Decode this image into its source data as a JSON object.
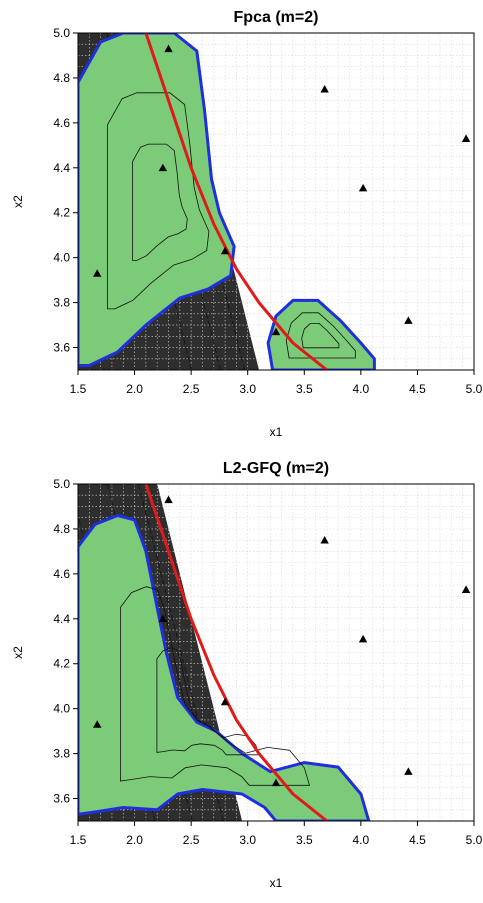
{
  "colors": {
    "background": "#ffffff",
    "gradient_dark": "#2e2e2e",
    "region_fill": "#7ccb78",
    "region_border": "#1f2fe0",
    "boundary_line": "#e01a1a",
    "contour_line": "#111111",
    "grid": "#d8d8d8",
    "point_marker": "#000000"
  },
  "chart_data": [
    {
      "type": "scatter",
      "title": "Fpca (m=2)",
      "xlabel": "x1",
      "ylabel": "x2",
      "xlim": [
        1.5,
        5.0
      ],
      "ylim": [
        3.5,
        5.0
      ],
      "xticks": [
        "1.5",
        "2.0",
        "2.5",
        "3.0",
        "3.5",
        "4.0",
        "4.5",
        "5.0"
      ],
      "yticks": [
        "3.6",
        "3.8",
        "4.0",
        "4.2",
        "4.4",
        "4.6",
        "4.8",
        "5.0"
      ],
      "grid": true,
      "points": [
        {
          "x": 1.67,
          "y": 3.93
        },
        {
          "x": 2.25,
          "y": 4.4
        },
        {
          "x": 2.3,
          "y": 4.93
        },
        {
          "x": 2.8,
          "y": 4.03
        },
        {
          "x": 3.25,
          "y": 3.67
        },
        {
          "x": 3.68,
          "y": 4.75
        },
        {
          "x": 4.02,
          "y": 4.31
        },
        {
          "x": 4.42,
          "y": 3.72
        },
        {
          "x": 4.93,
          "y": 4.53
        }
      ],
      "boundary_line": [
        [
          2.1,
          5.0
        ],
        [
          2.3,
          4.7
        ],
        [
          2.5,
          4.4
        ],
        [
          2.7,
          4.15
        ],
        [
          2.9,
          3.95
        ],
        [
          3.1,
          3.8
        ],
        [
          3.4,
          3.62
        ],
        [
          3.7,
          3.5
        ]
      ],
      "regions": [
        [
          [
            1.5,
            4.78
          ],
          [
            1.7,
            4.96
          ],
          [
            1.9,
            5.0
          ],
          [
            2.35,
            5.0
          ],
          [
            2.55,
            4.92
          ],
          [
            2.62,
            4.65
          ],
          [
            2.68,
            4.35
          ],
          [
            2.75,
            4.2
          ],
          [
            2.88,
            4.05
          ],
          [
            2.85,
            3.92
          ],
          [
            2.65,
            3.86
          ],
          [
            2.4,
            3.82
          ],
          [
            2.1,
            3.7
          ],
          [
            1.85,
            3.58
          ],
          [
            1.6,
            3.52
          ],
          [
            1.5,
            3.52
          ]
        ],
        [
          [
            3.22,
            3.5
          ],
          [
            3.18,
            3.62
          ],
          [
            3.25,
            3.74
          ],
          [
            3.4,
            3.81
          ],
          [
            3.62,
            3.81
          ],
          [
            3.82,
            3.72
          ],
          [
            4.0,
            3.62
          ],
          [
            4.12,
            3.55
          ],
          [
            4.12,
            3.5
          ]
        ]
      ],
      "shade": {
        "a": 1.0,
        "b": 0.5,
        "c": -4.85,
        "fade": 0.85
      }
    },
    {
      "type": "scatter",
      "title": "L2-GFQ (m=2)",
      "xlabel": "x1",
      "ylabel": "x2",
      "xlim": [
        1.5,
        5.0
      ],
      "ylim": [
        3.5,
        5.0
      ],
      "xticks": [
        "1.5",
        "2.0",
        "2.5",
        "3.0",
        "3.5",
        "4.0",
        "4.5",
        "5.0"
      ],
      "yticks": [
        "3.6",
        "3.8",
        "4.0",
        "4.2",
        "4.4",
        "4.6",
        "4.8",
        "5.0"
      ],
      "grid": true,
      "points": [
        {
          "x": 1.67,
          "y": 3.93
        },
        {
          "x": 2.25,
          "y": 4.4
        },
        {
          "x": 2.3,
          "y": 4.93
        },
        {
          "x": 2.8,
          "y": 4.03
        },
        {
          "x": 3.25,
          "y": 3.67
        },
        {
          "x": 3.68,
          "y": 4.75
        },
        {
          "x": 4.02,
          "y": 4.31
        },
        {
          "x": 4.42,
          "y": 3.72
        },
        {
          "x": 4.93,
          "y": 4.53
        }
      ],
      "boundary_line": [
        [
          2.1,
          5.0
        ],
        [
          2.3,
          4.7
        ],
        [
          2.5,
          4.4
        ],
        [
          2.7,
          4.15
        ],
        [
          2.9,
          3.95
        ],
        [
          3.1,
          3.8
        ],
        [
          3.4,
          3.62
        ],
        [
          3.7,
          3.5
        ]
      ],
      "regions": [
        [
          [
            1.5,
            4.72
          ],
          [
            1.65,
            4.82
          ],
          [
            1.85,
            4.86
          ],
          [
            2.0,
            4.84
          ],
          [
            2.1,
            4.7
          ],
          [
            2.18,
            4.5
          ],
          [
            2.28,
            4.25
          ],
          [
            2.38,
            4.05
          ],
          [
            2.55,
            3.94
          ],
          [
            2.72,
            3.9
          ],
          [
            2.95,
            3.8
          ],
          [
            3.2,
            3.72
          ],
          [
            3.5,
            3.76
          ],
          [
            3.8,
            3.74
          ],
          [
            4.0,
            3.62
          ],
          [
            4.07,
            3.5
          ],
          [
            3.25,
            3.5
          ],
          [
            3.15,
            3.56
          ],
          [
            2.95,
            3.62
          ],
          [
            2.6,
            3.64
          ],
          [
            2.38,
            3.62
          ],
          [
            2.2,
            3.55
          ],
          [
            1.9,
            3.56
          ],
          [
            1.65,
            3.54
          ],
          [
            1.5,
            3.53
          ]
        ]
      ],
      "shade": {
        "a": 1.0,
        "b": 0.5,
        "c": -4.7,
        "fade": 1.1
      }
    }
  ]
}
